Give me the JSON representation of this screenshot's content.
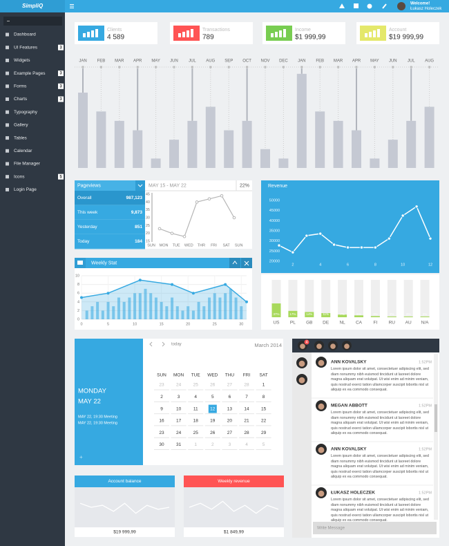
{
  "header": {
    "logo": "SimpliQ",
    "welcome": "Welcome!",
    "user": "Łukasz Holeczek"
  },
  "sidebar": {
    "items": [
      {
        "label": "Dashboard"
      },
      {
        "label": "UI Features",
        "badge": 3
      },
      {
        "label": "Widgets"
      },
      {
        "label": "Example Pages",
        "badge": 3
      },
      {
        "label": "Forms",
        "badge": 3
      },
      {
        "label": "Charts",
        "badge": 3
      },
      {
        "label": "Typography"
      },
      {
        "label": "Gallery"
      },
      {
        "label": "Tables"
      },
      {
        "label": "Calendar"
      },
      {
        "label": "File Manager"
      },
      {
        "label": "Icons",
        "badge": 5
      },
      {
        "label": "Login Page"
      }
    ]
  },
  "stats": [
    {
      "label": "Clients",
      "value": "4 589",
      "color": "#36a9e1"
    },
    {
      "label": "Transactions",
      "value": "789",
      "color": "#ff5454"
    },
    {
      "label": "Income",
      "value": "$1 999,99",
      "color": "#78cd51"
    },
    {
      "label": "Account",
      "value": "$19 999,99",
      "color": "#e4e86a"
    }
  ],
  "bar_chart": {
    "type": "bar",
    "categories": [
      "JAN",
      "FEB",
      "MAR",
      "APR",
      "MAY",
      "JUN",
      "JUL",
      "AUG",
      "SEP",
      "OCT",
      "NOV",
      "DEC",
      "JAN",
      "FEB",
      "MAR",
      "APR",
      "MAY",
      "JUN",
      "JUL",
      "AUG"
    ],
    "values": [
      8,
      6,
      5,
      4,
      1,
      3,
      5,
      6.5,
      4,
      5,
      2,
      1,
      10,
      6,
      5,
      4,
      1,
      3,
      5,
      6.5
    ],
    "ylim": [
      0,
      10.5
    ],
    "color": "#c5c9d3"
  },
  "pageviews": {
    "title": "Pageviews",
    "rows": [
      {
        "label": "Overall",
        "value": "987,123"
      },
      {
        "label": "This week",
        "value": "9,873"
      },
      {
        "label": "Yesterday",
        "value": "851"
      },
      {
        "label": "Today",
        "value": "184"
      }
    ],
    "range": "MAY 15 - MAY 22",
    "change": "22%",
    "chart": {
      "type": "line",
      "categories": [
        "SUN",
        "MON",
        "TUE",
        "WED",
        "THR",
        "FRI",
        "SAT",
        "SUN"
      ],
      "values": [
        23,
        20,
        18,
        40,
        42,
        44,
        30,
        null
      ],
      "ylim": [
        15,
        45
      ],
      "yticks": [
        45,
        40,
        35,
        30,
        25,
        20,
        15
      ],
      "color": "#b5b5b5"
    }
  },
  "weekly_stat": {
    "title": "Weekly Stat",
    "chart": {
      "type": "line",
      "x": [
        0,
        5,
        11,
        17,
        21,
        27,
        31
      ],
      "values": [
        5,
        6,
        9,
        8,
        6,
        8,
        4
      ],
      "bar_x": [
        1,
        2,
        3,
        4,
        5,
        6,
        7,
        8,
        9,
        10,
        11,
        12,
        13,
        14,
        15,
        16,
        17,
        18,
        19,
        20,
        21,
        22,
        23,
        24,
        25,
        26,
        27,
        28,
        29,
        30
      ],
      "bar_values": [
        2,
        3,
        4,
        2,
        4,
        3,
        5,
        4,
        5,
        6,
        6,
        7,
        6,
        5,
        4,
        3,
        5,
        3,
        2,
        3,
        2,
        4,
        3,
        5,
        6,
        5,
        6,
        7,
        5,
        3
      ],
      "xlim": [
        0,
        31
      ],
      "ylim": [
        0,
        10
      ],
      "xticks": [
        0,
        5,
        10,
        15,
        20,
        25,
        30
      ],
      "yticks": [
        0,
        2,
        4,
        6,
        8,
        10
      ],
      "grid": true,
      "color": "#36a9e1"
    }
  },
  "revenue": {
    "title": "Revenue",
    "chart": {
      "type": "line",
      "x": [
        1,
        2,
        3,
        4,
        5,
        6,
        7,
        8,
        9,
        10,
        11,
        12
      ],
      "values": [
        27800,
        24400,
        32600,
        33600,
        28200,
        26800,
        26800,
        26800,
        31200,
        42500,
        47000,
        31200
      ],
      "xlim": [
        1,
        12
      ],
      "ylim": [
        20000,
        50000
      ],
      "xticks": [
        2,
        4,
        6,
        8,
        10,
        12
      ],
      "yticks": [
        50000,
        45000,
        40000,
        35000,
        30000,
        25000,
        20000
      ],
      "color": "#ffffff"
    }
  },
  "countries": {
    "type": "bar",
    "categories": [
      "US",
      "PL",
      "GB",
      "DE",
      "NL",
      "CA",
      "FI",
      "RU",
      "AU",
      "N/A"
    ],
    "values": [
      37,
      17,
      14,
      11,
      7,
      5,
      3,
      2,
      2,
      2
    ],
    "value_labels": [
      "37%",
      "17%",
      "14%",
      "11%",
      "7%",
      "5%",
      "3%",
      "2%",
      "2%",
      "2%"
    ],
    "ylim": [
      0,
      100
    ],
    "color": "#a8d95c"
  },
  "calendar": {
    "day": "MONDAY",
    "date": "MAY 22",
    "events": [
      "MAY 22, 19:30 Meeting",
      "MAY 22, 19:30 Meeting"
    ],
    "add": "+",
    "today": "today",
    "month": "March 2014",
    "weekdays": [
      "SUN",
      "MON",
      "TUE",
      "WED",
      "THU",
      "FRI",
      "SAT"
    ],
    "weeks": [
      [
        23,
        24,
        25,
        26,
        27,
        28,
        1
      ],
      [
        2,
        3,
        4,
        5,
        6,
        7,
        8
      ],
      [
        9,
        10,
        11,
        12,
        13,
        14,
        15
      ],
      [
        16,
        17,
        18,
        19,
        20,
        21,
        22
      ],
      [
        23,
        24,
        25,
        26,
        27,
        28,
        29
      ],
      [
        30,
        31,
        1,
        2,
        3,
        4,
        5
      ]
    ],
    "selected_day": 12
  },
  "balances": [
    {
      "title": "Account balance",
      "value": "$19 999,99",
      "color": "#36a9e1",
      "values": [
        6,
        5,
        5.5,
        4,
        6,
        3.5,
        5.5,
        4.5,
        5
      ],
      "ylim": [
        0,
        10
      ]
    },
    {
      "title": "Weekly revenue",
      "value": "$1 849,99",
      "color": "#ff5454",
      "values": [
        5,
        6,
        4.5,
        6.5,
        4,
        5.5,
        3.5,
        5.5,
        4.5
      ],
      "ylim": [
        0,
        10
      ]
    }
  ],
  "chat": {
    "badge": 4,
    "placeholder": "Write Message",
    "messages": [
      {
        "name": "ANN KOVALSKY",
        "time": "1:52PM",
        "text": "Lorem ipsum dolor sit amet, consectetuer adipiscing elit, sed diam nonummy nibh euismod tincidunt ut laoreet dolore magna aliquam erat volutpat. Ut wisi enim ad minim veniam, quis nostrud exerci tation ullamcorper suscipit lobortis nisl ut aliquip ex ea commodo consequat."
      },
      {
        "name": "MEGAN ABBOTT",
        "time": "1:52PM",
        "text": "Lorem ipsum dolor sit amet, consectetuer adipiscing elit, sed diam nonummy nibh euismod tincidunt ut laoreet dolore magna aliquam erat volutpat. Ut wisi enim ad minim veniam, quis nostrud exerci tation ullamcorper suscipit lobortis nisl ut aliquip ex ea commodo consequat."
      },
      {
        "name": "ANN KOVALSKY",
        "time": "1:52PM",
        "text": "Lorem ipsum dolor sit amet, consectetuer adipiscing elit, sed diam nonummy nibh euismod tincidunt ut laoreet dolore magna aliquam erat volutpat. Ut wisi enim ad minim veniam, quis nostrud exerci tation ullamcorper suscipit lobortis nisl ut aliquip ex ea commodo consequat."
      },
      {
        "name": "ŁUKASZ HOLECZEK",
        "time": "1:52PM",
        "text": "Lorem ipsum dolor sit amet, consectetuer adipiscing elit, sed diam nonummy nibh euismod tincidunt ut laoreet dolore magna aliquam erat volutpat. Ut wisi enim ad minim veniam, quis nostrud exerci tation ullamcorper suscipit lobortis nisl ut aliquip ex ea commodo consequat."
      }
    ]
  }
}
